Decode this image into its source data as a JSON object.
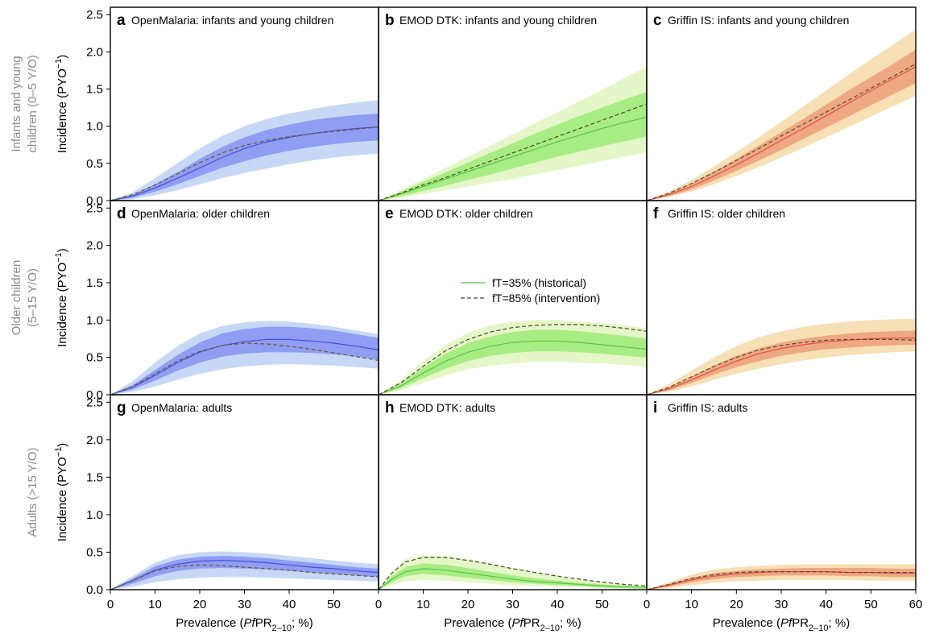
{
  "figure": {
    "row_labels": [
      [
        "Infants and young",
        "children (0–5 Y/O)"
      ],
      [
        "Older children",
        "(5–15 Y/O)"
      ],
      [
        "Adults (>15 Y/O)"
      ]
    ],
    "ylabel": "Incidence (PYO",
    "ylabel_sup": "−1",
    "ylabel_close": ")",
    "xlabel_pre": "Prevalence (",
    "xlabel_italic": "Pf",
    "xlabel_mid": "PR",
    "xlabel_sub": "2–10",
    "xlabel_post": "; %)",
    "yticks": [
      "0.0",
      "0.5",
      "1.0",
      "1.5",
      "2.0",
      "2.5"
    ],
    "xticks_cols": [
      [
        "0",
        "10",
        "20",
        "30",
        "40",
        "50"
      ],
      [
        "0",
        "10",
        "20",
        "30",
        "40",
        "50"
      ],
      [
        "0",
        "10",
        "20",
        "30",
        "40",
        "50",
        "60"
      ]
    ],
    "legend": {
      "historical": "fT=35% (historical)",
      "intervention": "fT=85% (intervention)"
    }
  },
  "colors": {
    "blue": {
      "outer": "#c6d8f6",
      "inner": "#8f9df3",
      "line": "#4a4fd6",
      "dash": "#6b5a2a"
    },
    "green": {
      "outer": "#e5f7c8",
      "inner": "#a8ec84",
      "line": "#5cc24a",
      "dash": "#4a4a2a"
    },
    "red": {
      "outer": "#f7e0b5",
      "inner": "#eea882",
      "line": "#e0504a",
      "dash": "#5a4a2a"
    }
  },
  "chart_data": [
    {
      "letter": "a",
      "title": "OpenMalaria: infants and young children",
      "type": "line",
      "color": "blue",
      "xlim": [
        0,
        60
      ],
      "ylim": [
        0,
        2.6
      ],
      "x": [
        0,
        5,
        10,
        15,
        20,
        25,
        30,
        35,
        40,
        45,
        50,
        55,
        60
      ],
      "solid": [
        0,
        0.06,
        0.17,
        0.3,
        0.44,
        0.58,
        0.7,
        0.79,
        0.85,
        0.9,
        0.94,
        0.97,
        0.99
      ],
      "dashed": [
        0,
        0.08,
        0.21,
        0.36,
        0.51,
        0.64,
        0.74,
        0.81,
        0.86,
        0.9,
        0.93,
        0.96,
        0.99
      ],
      "inner_lo": [
        0,
        0.04,
        0.12,
        0.22,
        0.33,
        0.44,
        0.53,
        0.61,
        0.67,
        0.72,
        0.76,
        0.79,
        0.81
      ],
      "inner_hi": [
        0,
        0.08,
        0.22,
        0.38,
        0.56,
        0.72,
        0.85,
        0.95,
        1.02,
        1.08,
        1.12,
        1.15,
        1.17
      ],
      "outer_lo": [
        0,
        0.02,
        0.07,
        0.14,
        0.22,
        0.3,
        0.37,
        0.43,
        0.49,
        0.54,
        0.58,
        0.61,
        0.63
      ],
      "outer_hi": [
        0,
        0.11,
        0.3,
        0.5,
        0.7,
        0.87,
        1.0,
        1.1,
        1.17,
        1.23,
        1.28,
        1.32,
        1.35
      ]
    },
    {
      "letter": "b",
      "title": "EMOD DTK: infants and young children",
      "type": "line",
      "color": "green",
      "xlim": [
        0,
        60
      ],
      "ylim": [
        0,
        2.6
      ],
      "x": [
        0,
        5,
        10,
        15,
        20,
        25,
        30,
        35,
        40,
        45,
        50,
        55,
        60
      ],
      "solid": [
        0,
        0.09,
        0.19,
        0.29,
        0.39,
        0.49,
        0.59,
        0.69,
        0.79,
        0.88,
        0.97,
        1.05,
        1.12
      ],
      "dashed": [
        0,
        0.1,
        0.21,
        0.31,
        0.42,
        0.53,
        0.64,
        0.75,
        0.86,
        0.97,
        1.08,
        1.19,
        1.3
      ],
      "inner_lo": [
        0,
        0.06,
        0.13,
        0.2,
        0.28,
        0.35,
        0.43,
        0.51,
        0.59,
        0.66,
        0.73,
        0.8,
        0.86
      ],
      "inner_hi": [
        0,
        0.12,
        0.25,
        0.38,
        0.51,
        0.64,
        0.77,
        0.9,
        1.02,
        1.14,
        1.25,
        1.36,
        1.46
      ],
      "outer_lo": [
        0,
        0.04,
        0.09,
        0.14,
        0.19,
        0.24,
        0.29,
        0.35,
        0.41,
        0.47,
        0.53,
        0.59,
        0.65
      ],
      "outer_hi": [
        0,
        0.14,
        0.29,
        0.44,
        0.59,
        0.74,
        0.89,
        1.04,
        1.19,
        1.34,
        1.49,
        1.65,
        1.8
      ]
    },
    {
      "letter": "c",
      "title": "Griffin IS: infants and young children",
      "type": "line",
      "color": "red",
      "xlim": [
        0,
        60
      ],
      "ylim": [
        0,
        2.6
      ],
      "x": [
        0,
        5,
        10,
        15,
        20,
        25,
        30,
        35,
        40,
        45,
        50,
        55,
        60
      ],
      "solid": [
        0,
        0.08,
        0.19,
        0.33,
        0.48,
        0.64,
        0.81,
        0.97,
        1.14,
        1.31,
        1.48,
        1.64,
        1.8
      ],
      "dashed": [
        0,
        0.1,
        0.23,
        0.38,
        0.54,
        0.7,
        0.87,
        1.03,
        1.19,
        1.35,
        1.51,
        1.67,
        1.84
      ],
      "inner_lo": [
        0,
        0.06,
        0.15,
        0.27,
        0.4,
        0.54,
        0.68,
        0.83,
        0.98,
        1.13,
        1.28,
        1.43,
        1.58
      ],
      "inner_hi": [
        0,
        0.1,
        0.23,
        0.39,
        0.56,
        0.74,
        0.92,
        1.1,
        1.29,
        1.48,
        1.66,
        1.84,
        2.03
      ],
      "outer_lo": [
        0,
        0.05,
        0.12,
        0.22,
        0.33,
        0.45,
        0.58,
        0.71,
        0.85,
        0.99,
        1.13,
        1.27,
        1.41
      ],
      "outer_hi": [
        0,
        0.12,
        0.28,
        0.46,
        0.65,
        0.85,
        1.06,
        1.27,
        1.48,
        1.69,
        1.9,
        2.1,
        2.3
      ]
    },
    {
      "letter": "d",
      "title": "OpenMalaria: older children",
      "type": "line",
      "color": "blue",
      "xlim": [
        0,
        60
      ],
      "ylim": [
        0,
        2.6
      ],
      "x": [
        0,
        5,
        10,
        15,
        20,
        25,
        30,
        35,
        40,
        45,
        50,
        55,
        60
      ],
      "solid": [
        0,
        0.1,
        0.26,
        0.43,
        0.57,
        0.66,
        0.71,
        0.74,
        0.74,
        0.72,
        0.69,
        0.65,
        0.6
      ],
      "dashed": [
        0,
        0.11,
        0.28,
        0.45,
        0.58,
        0.66,
        0.69,
        0.68,
        0.65,
        0.61,
        0.56,
        0.51,
        0.46
      ],
      "inner_lo": [
        0,
        0.07,
        0.19,
        0.32,
        0.43,
        0.51,
        0.55,
        0.57,
        0.57,
        0.56,
        0.54,
        0.51,
        0.47
      ],
      "inner_hi": [
        0,
        0.13,
        0.33,
        0.53,
        0.7,
        0.82,
        0.88,
        0.91,
        0.91,
        0.89,
        0.86,
        0.81,
        0.76
      ],
      "outer_lo": [
        0,
        0.04,
        0.11,
        0.2,
        0.28,
        0.34,
        0.38,
        0.4,
        0.41,
        0.4,
        0.39,
        0.37,
        0.35
      ],
      "outer_hi": [
        0,
        0.18,
        0.43,
        0.65,
        0.82,
        0.92,
        0.97,
        0.99,
        0.98,
        0.95,
        0.91,
        0.86,
        0.81
      ]
    },
    {
      "letter": "e",
      "title": "EMOD DTK: older children",
      "type": "line",
      "color": "green",
      "xlim": [
        0,
        60
      ],
      "ylim": [
        0,
        2.6
      ],
      "x": [
        0,
        5,
        10,
        15,
        20,
        25,
        30,
        35,
        40,
        45,
        50,
        55,
        60
      ],
      "solid": [
        0,
        0.12,
        0.29,
        0.45,
        0.57,
        0.65,
        0.7,
        0.72,
        0.72,
        0.7,
        0.67,
        0.64,
        0.61
      ],
      "dashed": [
        0,
        0.16,
        0.38,
        0.59,
        0.74,
        0.84,
        0.9,
        0.93,
        0.94,
        0.94,
        0.92,
        0.89,
        0.85
      ],
      "inner_lo": [
        0,
        0.09,
        0.22,
        0.35,
        0.45,
        0.52,
        0.56,
        0.58,
        0.58,
        0.57,
        0.55,
        0.52,
        0.5
      ],
      "inner_hi": [
        0,
        0.15,
        0.36,
        0.55,
        0.69,
        0.78,
        0.84,
        0.87,
        0.87,
        0.85,
        0.82,
        0.79,
        0.75
      ],
      "outer_lo": [
        0,
        0.06,
        0.16,
        0.26,
        0.34,
        0.39,
        0.42,
        0.44,
        0.44,
        0.43,
        0.42,
        0.4,
        0.37
      ],
      "outer_hi": [
        0,
        0.19,
        0.45,
        0.67,
        0.83,
        0.93,
        0.98,
        1.0,
        1.0,
        0.98,
        0.96,
        0.93,
        0.89
      ]
    },
    {
      "letter": "f",
      "title": "Griffin IS: older children",
      "type": "line",
      "color": "red",
      "xlim": [
        0,
        60
      ],
      "ylim": [
        0,
        2.6
      ],
      "x": [
        0,
        5,
        10,
        15,
        20,
        25,
        30,
        35,
        40,
        45,
        50,
        55,
        60
      ],
      "solid": [
        0,
        0.08,
        0.2,
        0.33,
        0.45,
        0.55,
        0.62,
        0.67,
        0.71,
        0.73,
        0.75,
        0.76,
        0.76
      ],
      "dashed": [
        0,
        0.1,
        0.24,
        0.38,
        0.5,
        0.6,
        0.66,
        0.7,
        0.73,
        0.74,
        0.74,
        0.74,
        0.73
      ],
      "inner_lo": [
        0,
        0.06,
        0.16,
        0.27,
        0.37,
        0.45,
        0.52,
        0.57,
        0.61,
        0.63,
        0.65,
        0.66,
        0.67
      ],
      "inner_hi": [
        0,
        0.1,
        0.24,
        0.39,
        0.52,
        0.62,
        0.7,
        0.75,
        0.79,
        0.82,
        0.84,
        0.85,
        0.86
      ],
      "outer_lo": [
        0,
        0.04,
        0.11,
        0.2,
        0.28,
        0.35,
        0.41,
        0.46,
        0.5,
        0.53,
        0.55,
        0.57,
        0.58
      ],
      "outer_hi": [
        0,
        0.14,
        0.32,
        0.5,
        0.65,
        0.77,
        0.85,
        0.91,
        0.95,
        0.98,
        1.0,
        1.01,
        1.02
      ]
    },
    {
      "letter": "g",
      "title": "OpenMalaria: adults",
      "type": "line",
      "color": "blue",
      "xlim": [
        0,
        60
      ],
      "ylim": [
        0,
        2.6
      ],
      "x": [
        0,
        5,
        10,
        15,
        20,
        25,
        30,
        35,
        40,
        45,
        50,
        55,
        60
      ],
      "solid": [
        0,
        0.12,
        0.26,
        0.34,
        0.38,
        0.39,
        0.38,
        0.36,
        0.33,
        0.3,
        0.28,
        0.25,
        0.23
      ],
      "dashed": [
        0,
        0.12,
        0.25,
        0.31,
        0.33,
        0.32,
        0.3,
        0.28,
        0.26,
        0.23,
        0.21,
        0.19,
        0.17
      ],
      "inner_lo": [
        0,
        0.08,
        0.18,
        0.25,
        0.28,
        0.29,
        0.28,
        0.27,
        0.25,
        0.23,
        0.21,
        0.19,
        0.17
      ],
      "inner_hi": [
        0,
        0.15,
        0.31,
        0.4,
        0.44,
        0.45,
        0.44,
        0.42,
        0.39,
        0.36,
        0.33,
        0.3,
        0.28
      ],
      "outer_lo": [
        0,
        0.04,
        0.1,
        0.14,
        0.16,
        0.17,
        0.17,
        0.16,
        0.15,
        0.14,
        0.13,
        0.12,
        0.11
      ],
      "outer_hi": [
        0,
        0.18,
        0.36,
        0.46,
        0.5,
        0.51,
        0.5,
        0.48,
        0.45,
        0.42,
        0.39,
        0.36,
        0.34
      ]
    },
    {
      "letter": "h",
      "title": "EMOD DTK: adults",
      "type": "line",
      "color": "green",
      "xlim": [
        0,
        60
      ],
      "ylim": [
        0,
        2.6
      ],
      "x": [
        0,
        3,
        6,
        10,
        15,
        20,
        25,
        30,
        35,
        40,
        45,
        50,
        55,
        60
      ],
      "solid": [
        0,
        0.14,
        0.24,
        0.28,
        0.26,
        0.22,
        0.18,
        0.14,
        0.11,
        0.09,
        0.07,
        0.05,
        0.04,
        0.03
      ],
      "dashed": [
        0,
        0.22,
        0.37,
        0.43,
        0.43,
        0.39,
        0.34,
        0.28,
        0.23,
        0.18,
        0.14,
        0.1,
        0.07,
        0.05
      ],
      "inner_lo": [
        0,
        0.1,
        0.18,
        0.21,
        0.19,
        0.16,
        0.13,
        0.1,
        0.08,
        0.06,
        0.05,
        0.03,
        0.02,
        0.01
      ],
      "inner_hi": [
        0,
        0.18,
        0.3,
        0.35,
        0.33,
        0.29,
        0.24,
        0.19,
        0.15,
        0.12,
        0.09,
        0.07,
        0.05,
        0.04
      ],
      "outer_lo": [
        0,
        0.06,
        0.11,
        0.13,
        0.12,
        0.1,
        0.08,
        0.06,
        0.05,
        0.04,
        0.03,
        0.02,
        0.01,
        0.01
      ],
      "outer_hi": [
        0,
        0.25,
        0.4,
        0.46,
        0.45,
        0.41,
        0.35,
        0.29,
        0.23,
        0.18,
        0.14,
        0.1,
        0.07,
        0.05
      ]
    },
    {
      "letter": "i",
      "title": "Griffin IS: adults",
      "type": "line",
      "color": "red",
      "xlim": [
        0,
        60
      ],
      "ylim": [
        0,
        2.6
      ],
      "x": [
        0,
        5,
        10,
        15,
        20,
        25,
        30,
        35,
        40,
        45,
        50,
        55,
        60
      ],
      "solid": [
        0,
        0.06,
        0.13,
        0.18,
        0.21,
        0.23,
        0.24,
        0.24,
        0.24,
        0.23,
        0.23,
        0.22,
        0.22
      ],
      "dashed": [
        0,
        0.07,
        0.15,
        0.2,
        0.23,
        0.24,
        0.24,
        0.24,
        0.24,
        0.23,
        0.23,
        0.23,
        0.23
      ],
      "inner_lo": [
        0,
        0.04,
        0.1,
        0.14,
        0.17,
        0.18,
        0.19,
        0.19,
        0.19,
        0.18,
        0.18,
        0.17,
        0.17
      ],
      "inner_hi": [
        0,
        0.08,
        0.16,
        0.22,
        0.25,
        0.27,
        0.28,
        0.29,
        0.29,
        0.29,
        0.29,
        0.28,
        0.28
      ],
      "outer_lo": [
        0,
        0.02,
        0.06,
        0.09,
        0.11,
        0.12,
        0.13,
        0.13,
        0.13,
        0.13,
        0.12,
        0.12,
        0.12
      ],
      "outer_hi": [
        0,
        0.1,
        0.2,
        0.27,
        0.3,
        0.32,
        0.33,
        0.34,
        0.34,
        0.34,
        0.34,
        0.34,
        0.34
      ]
    }
  ]
}
